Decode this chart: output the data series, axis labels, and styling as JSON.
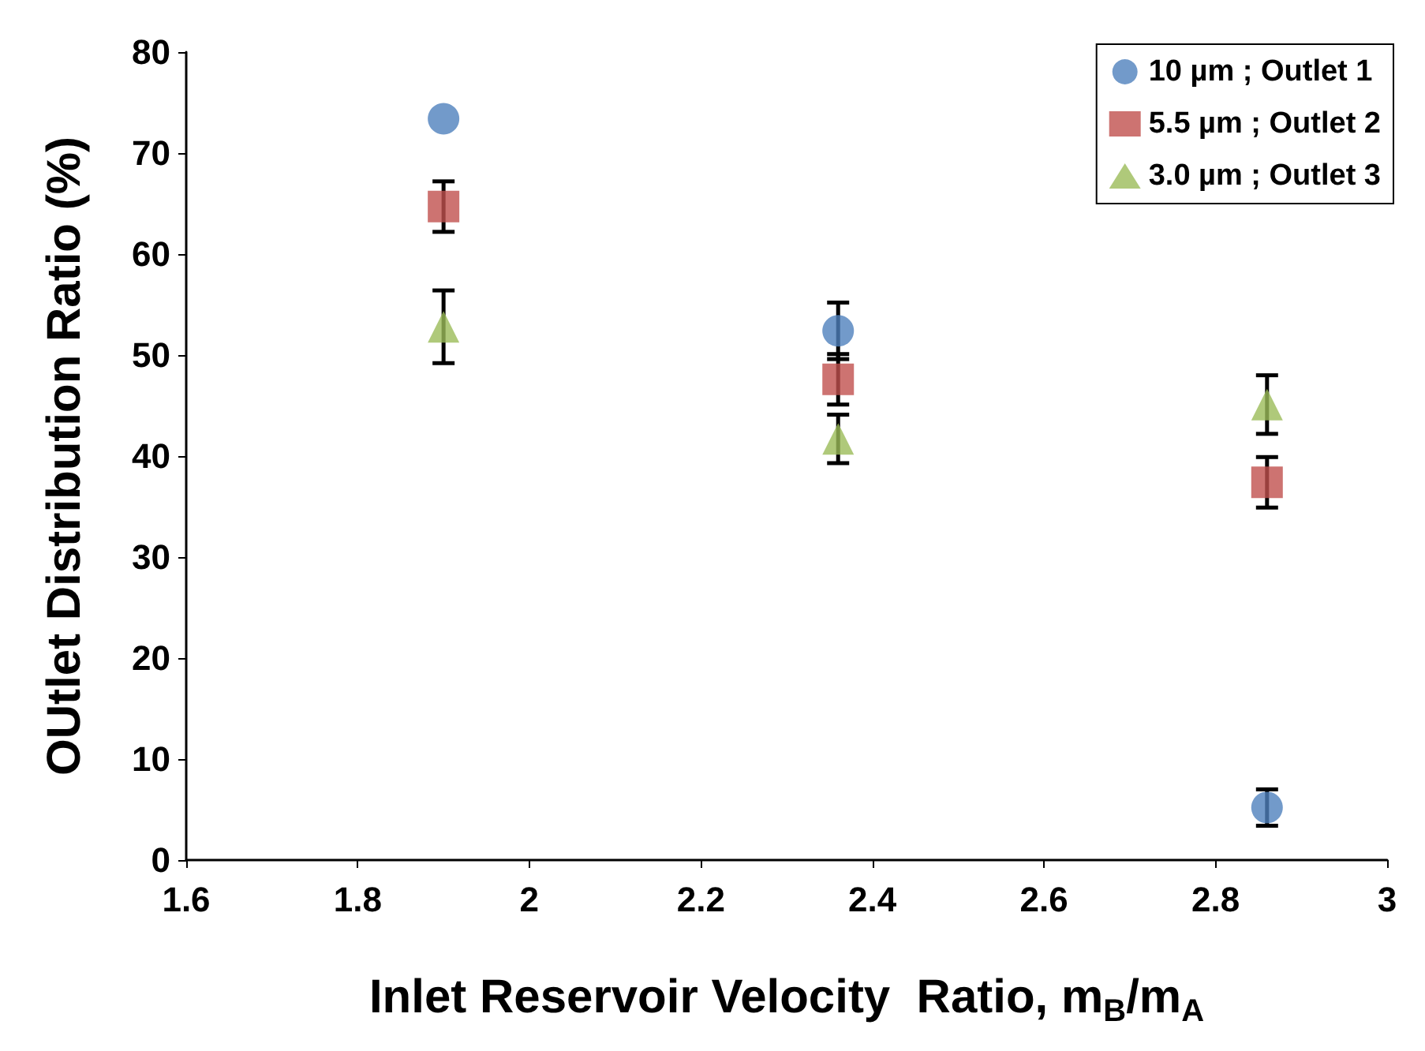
{
  "chart_data": {
    "type": "scatter",
    "xlabel": "Inlet Reservoir Velocity  Ratio, m$_{B}$/m$_{A}$",
    "ylabel": "OUtlet Distribution Ratio (%)",
    "xlim": [
      1.6,
      3
    ],
    "xticks": [
      1.6,
      1.8,
      2,
      2.2,
      2.4,
      2.6,
      2.8,
      3
    ],
    "ylim": [
      0,
      80
    ],
    "yticks": [
      0,
      10,
      20,
      30,
      40,
      50,
      60,
      70,
      80
    ],
    "grid": false,
    "legend": "top right",
    "x": [
      1.9,
      2.36,
      2.86
    ],
    "series": [
      {
        "name": "10 µm ; Outlet 1",
        "color": "#4f81bd",
        "marker": "circle",
        "values": [
          73.4,
          52.4,
          5.2
        ],
        "errors": [
          null,
          2.8,
          1.8
        ]
      },
      {
        "name": "5.5 µm ; Outlet 2",
        "color": "#c0504d",
        "marker": "square",
        "values": [
          64.7,
          47.6,
          37.4
        ],
        "errors": [
          2.5,
          2.5,
          2.5
        ]
      },
      {
        "name": "3.0 µm ; Outlet 3",
        "color": "#9bbb59",
        "marker": "triangle",
        "values": [
          52.8,
          41.7,
          45.1
        ],
        "errors": [
          3.6,
          2.4,
          2.9
        ]
      }
    ]
  }
}
